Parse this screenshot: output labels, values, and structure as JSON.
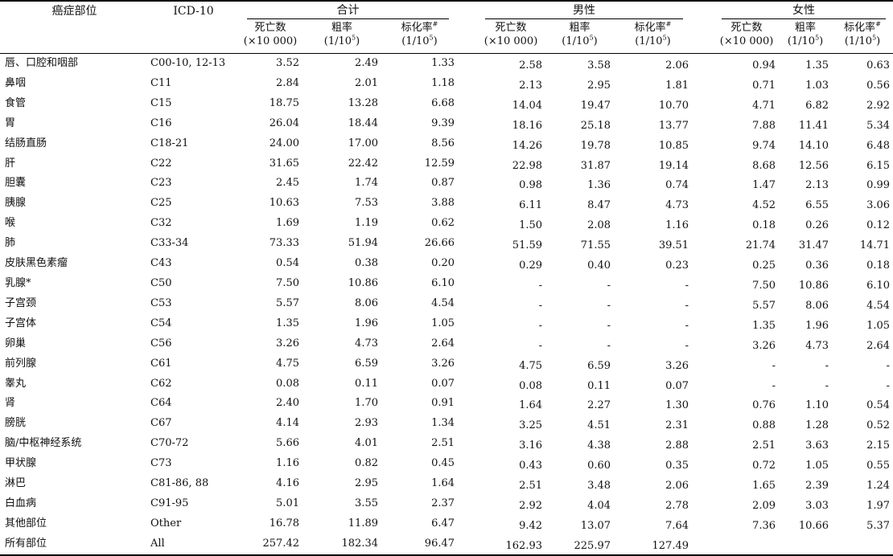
{
  "headers": {
    "site": "癌症部位",
    "icd": "ICD-10",
    "groups": [
      "合计",
      "男性",
      "女性"
    ],
    "deaths": "死亡数",
    "deaths_unit": "(×10 000)",
    "crude": "粗率",
    "asr": "标化率",
    "asr_mark": "#",
    "rate_unit_pre": "(1/10",
    "rate_unit_exp": "5",
    "rate_unit_post": ")"
  },
  "rows": [
    {
      "site": "唇、口腔和咽部",
      "icd": "C00-10, 12-13",
      "v": [
        "3.52",
        "2.49",
        "1.33",
        "2.58",
        "3.58",
        "2.06",
        "0.94",
        "1.35",
        "0.63"
      ]
    },
    {
      "site": "鼻咽",
      "icd": "C11",
      "v": [
        "2.84",
        "2.01",
        "1.18",
        "2.13",
        "2.95",
        "1.81",
        "0.71",
        "1.03",
        "0.56"
      ]
    },
    {
      "site": "食管",
      "icd": "C15",
      "v": [
        "18.75",
        "13.28",
        "6.68",
        "14.04",
        "19.47",
        "10.70",
        "4.71",
        "6.82",
        "2.92"
      ]
    },
    {
      "site": "胃",
      "icd": "C16",
      "v": [
        "26.04",
        "18.44",
        "9.39",
        "18.16",
        "25.18",
        "13.77",
        "7.88",
        "11.41",
        "5.34"
      ]
    },
    {
      "site": "结肠直肠",
      "icd": "C18-21",
      "v": [
        "24.00",
        "17.00",
        "8.56",
        "14.26",
        "19.78",
        "10.85",
        "9.74",
        "14.10",
        "6.48"
      ]
    },
    {
      "site": "肝",
      "icd": "C22",
      "v": [
        "31.65",
        "22.42",
        "12.59",
        "22.98",
        "31.87",
        "19.14",
        "8.68",
        "12.56",
        "6.15"
      ]
    },
    {
      "site": "胆囊",
      "icd": "C23",
      "v": [
        "2.45",
        "1.74",
        "0.87",
        "0.98",
        "1.36",
        "0.74",
        "1.47",
        "2.13",
        "0.99"
      ]
    },
    {
      "site": "胰腺",
      "icd": "C25",
      "v": [
        "10.63",
        "7.53",
        "3.88",
        "6.11",
        "8.47",
        "4.73",
        "4.52",
        "6.55",
        "3.06"
      ]
    },
    {
      "site": "喉",
      "icd": "C32",
      "v": [
        "1.69",
        "1.19",
        "0.62",
        "1.50",
        "2.08",
        "1.16",
        "0.18",
        "0.26",
        "0.12"
      ]
    },
    {
      "site": "肺",
      "icd": "C33-34",
      "v": [
        "73.33",
        "51.94",
        "26.66",
        "51.59",
        "71.55",
        "39.51",
        "21.74",
        "31.47",
        "14.71"
      ]
    },
    {
      "site": "皮肤黑色素瘤",
      "icd": "C43",
      "v": [
        "0.54",
        "0.38",
        "0.20",
        "0.29",
        "0.40",
        "0.23",
        "0.25",
        "0.36",
        "0.18"
      ]
    },
    {
      "site": "乳腺*",
      "icd": "C50",
      "v": [
        "7.50",
        "10.86",
        "6.10",
        "-",
        "-",
        "-",
        "7.50",
        "10.86",
        "6.10"
      ]
    },
    {
      "site": "子宫颈",
      "icd": "C53",
      "v": [
        "5.57",
        "8.06",
        "4.54",
        "-",
        "-",
        "-",
        "5.57",
        "8.06",
        "4.54"
      ]
    },
    {
      "site": "子宫体",
      "icd": "C54",
      "v": [
        "1.35",
        "1.96",
        "1.05",
        "-",
        "-",
        "-",
        "1.35",
        "1.96",
        "1.05"
      ]
    },
    {
      "site": "卵巢",
      "icd": "C56",
      "v": [
        "3.26",
        "4.73",
        "2.64",
        "-",
        "-",
        "-",
        "3.26",
        "4.73",
        "2.64"
      ]
    },
    {
      "site": "前列腺",
      "icd": "C61",
      "v": [
        "4.75",
        "6.59",
        "3.26",
        "4.75",
        "6.59",
        "3.26",
        "-",
        "-",
        "-"
      ]
    },
    {
      "site": "睾丸",
      "icd": "C62",
      "v": [
        "0.08",
        "0.11",
        "0.07",
        "0.08",
        "0.11",
        "0.07",
        "-",
        "-",
        "-"
      ]
    },
    {
      "site": "肾",
      "icd": "C64",
      "v": [
        "2.40",
        "1.70",
        "0.91",
        "1.64",
        "2.27",
        "1.30",
        "0.76",
        "1.10",
        "0.54"
      ]
    },
    {
      "site": "膀胱",
      "icd": "C67",
      "v": [
        "4.14",
        "2.93",
        "1.34",
        "3.25",
        "4.51",
        "2.31",
        "0.88",
        "1.28",
        "0.52"
      ]
    },
    {
      "site": "脑/中枢神经系统",
      "icd": "C70-72",
      "v": [
        "5.66",
        "4.01",
        "2.51",
        "3.16",
        "4.38",
        "2.88",
        "2.51",
        "3.63",
        "2.15"
      ]
    },
    {
      "site": "甲状腺",
      "icd": "C73",
      "v": [
        "1.16",
        "0.82",
        "0.45",
        "0.43",
        "0.60",
        "0.35",
        "0.72",
        "1.05",
        "0.55"
      ]
    },
    {
      "site": "淋巴",
      "icd": "C81-86, 88",
      "v": [
        "4.16",
        "2.95",
        "1.64",
        "2.51",
        "3.48",
        "2.06",
        "1.65",
        "2.39",
        "1.24"
      ]
    },
    {
      "site": "白血病",
      "icd": "C91-95",
      "v": [
        "5.01",
        "3.55",
        "2.37",
        "2.92",
        "4.04",
        "2.78",
        "2.09",
        "3.03",
        "1.97"
      ]
    },
    {
      "site": "其他部位",
      "icd": "Other",
      "v": [
        "16.78",
        "11.89",
        "6.47",
        "9.42",
        "13.07",
        "7.64",
        "7.36",
        "10.66",
        "5.37"
      ]
    },
    {
      "site": "所有部位",
      "icd": "All",
      "v": [
        "257.42",
        "182.34",
        "96.47",
        "162.93",
        "225.97",
        "127.49",
        "",
        "",
        ""
      ]
    }
  ]
}
